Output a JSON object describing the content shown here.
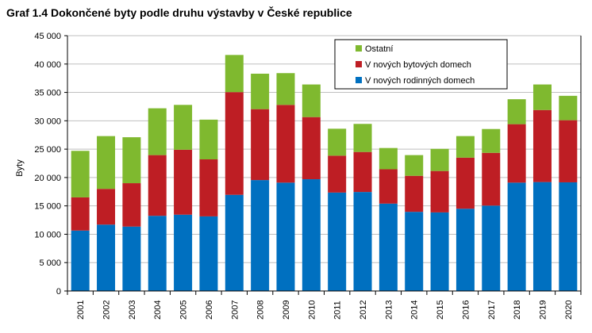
{
  "chart_data": {
    "type": "bar",
    "stacked": true,
    "title": "Graf 1.4 Dokončené byty podle druhu výstavby v České republice",
    "xlabel": "",
    "ylabel": "Byty",
    "ylim": [
      0,
      45000
    ],
    "yticks": [
      0,
      5000,
      10000,
      15000,
      20000,
      25000,
      30000,
      35000,
      40000,
      45000
    ],
    "ytick_labels": [
      "0",
      "5 000",
      "10 000",
      "15 000",
      "20 000",
      "25 000",
      "30 000",
      "35 000",
      "40 000",
      "45 000"
    ],
    "grid": true,
    "legend_position": "top-right",
    "categories": [
      "2001",
      "2002",
      "2003",
      "2004",
      "2005",
      "2006",
      "2007",
      "2008",
      "2009",
      "2010",
      "2011",
      "2012",
      "2013",
      "2014",
      "2015",
      "2016",
      "2017",
      "2018",
      "2019",
      "2020"
    ],
    "series": [
      {
        "name": "V nových rodinných domech",
        "color": "#0070c0",
        "values": [
          10650,
          11700,
          11350,
          13250,
          13450,
          13150,
          16950,
          19550,
          19100,
          19700,
          17350,
          17450,
          15400,
          13950,
          13850,
          14500,
          15050,
          19100,
          19200,
          19150
        ]
      },
      {
        "name": "V nových bytových domech",
        "color": "#be1e24",
        "values": [
          5850,
          6300,
          7650,
          10700,
          11450,
          10050,
          18100,
          12500,
          13700,
          10950,
          6500,
          7050,
          6050,
          6350,
          7300,
          9000,
          9300,
          10300,
          12700,
          10950
        ]
      },
      {
        "name": "Ostatní",
        "color": "#7fb92f",
        "values": [
          8200,
          9300,
          8100,
          8250,
          7900,
          7000,
          6550,
          6250,
          5600,
          5750,
          4750,
          4950,
          3750,
          3650,
          3900,
          3800,
          4200,
          4400,
          4500,
          4300
        ]
      }
    ],
    "legend_order": [
      "Ostatní",
      "V nových bytových domech",
      "V nových rodinných domech"
    ]
  }
}
